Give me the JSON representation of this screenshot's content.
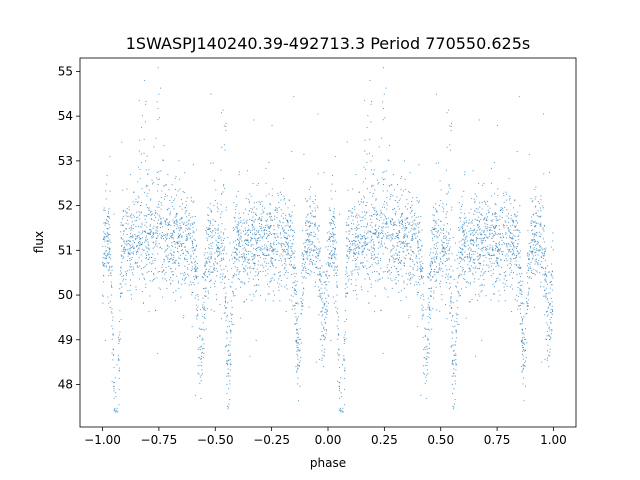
{
  "chart_data": {
    "type": "scatter",
    "title": "1SWASPJ140240.39-492713.3 Period 770550.625s",
    "xlabel": "phase",
    "ylabel": "flux",
    "xlim": [
      -1.1,
      1.1
    ],
    "ylim": [
      47.05,
      55.3
    ],
    "xticks": [
      -1.0,
      -0.75,
      -0.5,
      -0.25,
      0.0,
      0.25,
      0.5,
      0.75,
      1.0
    ],
    "xtick_labels": [
      "−1.00",
      "−0.75",
      "−0.50",
      "−0.25",
      "0.00",
      "0.25",
      "0.50",
      "0.75",
      "1.00"
    ],
    "yticks": [
      48,
      49,
      50,
      51,
      52,
      53,
      54,
      55
    ],
    "ytick_labels": [
      "48",
      "49",
      "50",
      "51",
      "52",
      "53",
      "54",
      "55"
    ],
    "grid": false,
    "legend": "none",
    "marker_color": "#1f77b4",
    "baseline_flux": 51.2,
    "scatter_flux": 0.55,
    "phase_pattern": "repeats with period 1 (points at phase p and p-1 mirror each other)",
    "dips": [
      {
        "phase": -0.94,
        "flux": 49.0
      },
      {
        "phase": -0.56,
        "flux": 49.8
      },
      {
        "phase": -0.44,
        "flux": 49.6
      },
      {
        "phase": -0.13,
        "flux": 49.9
      },
      {
        "phase": 0.06,
        "flux": 49.0
      },
      {
        "phase": 0.43,
        "flux": 49.8
      },
      {
        "phase": 0.56,
        "flux": 49.6
      },
      {
        "phase": 0.87,
        "flux": 49.9
      },
      {
        "phase": 0.98,
        "flux": 49.2
      }
    ],
    "upper_excursions": [
      {
        "phase": -0.82,
        "flux": 53.5
      },
      {
        "phase": -0.75,
        "flux": 53.3
      },
      {
        "phase": -0.45,
        "flux": 53.5
      },
      {
        "phase": 0.18,
        "flux": 53.5
      },
      {
        "phase": 0.25,
        "flux": 53.3
      },
      {
        "phase": 0.55,
        "flux": 53.5
      }
    ]
  }
}
